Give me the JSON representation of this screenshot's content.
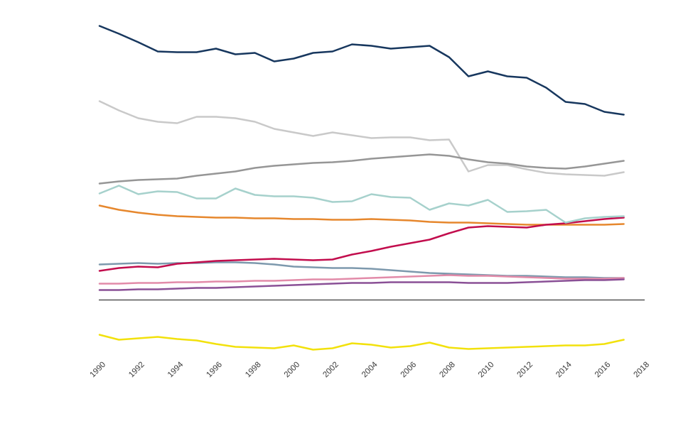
{
  "chart_data": {
    "type": "line",
    "title": "",
    "xlabel": "",
    "ylabel": "",
    "y_axis_labels_visible": false,
    "units": "arbitrary (no y-axis scale shown)",
    "grid": false,
    "legend": "none",
    "x": [
      1990,
      1991,
      1992,
      1993,
      1994,
      1995,
      1996,
      1997,
      1998,
      1999,
      2000,
      2001,
      2002,
      2003,
      2004,
      2005,
      2006,
      2007,
      2008,
      2009,
      2010,
      2011,
      2012,
      2013,
      2014,
      2015,
      2016,
      2017
    ],
    "x_tick_labels": [
      "1990",
      "1992",
      "1994",
      "1996",
      "1998",
      "2000",
      "2002",
      "2004",
      "2006",
      "2008",
      "2010",
      "2012",
      "2014",
      "2016",
      "2018"
    ],
    "x_tick_rotation_deg": 45,
    "x_range": [
      1990,
      2018
    ],
    "ylim": [
      -75,
      400
    ],
    "axis_color": "#3a3a3a",
    "tick_label_color": "#3a3a3a",
    "baseline_at_zero": true,
    "series": [
      {
        "name": "dark-navy",
        "color": "#17375e",
        "values": [
          386,
          375,
          363,
          350,
          349,
          349,
          354,
          346,
          348,
          336,
          340,
          348,
          350,
          360,
          358,
          354,
          356,
          358,
          342,
          315,
          322,
          315,
          313,
          299,
          279,
          276,
          265,
          261
        ]
      },
      {
        "name": "light-gray",
        "color": "#c9c9c9",
        "values": [
          280,
          267,
          256,
          251,
          249,
          258,
          258,
          256,
          251,
          241,
          236,
          231,
          236,
          232,
          228,
          229,
          229,
          225,
          226,
          181,
          190,
          190,
          184,
          179,
          177,
          176,
          175,
          180
        ]
      },
      {
        "name": "medium-gray",
        "color": "#969696",
        "values": [
          164,
          167,
          169,
          170,
          171,
          175,
          178,
          181,
          186,
          189,
          191,
          193,
          194,
          196,
          199,
          201,
          203,
          205,
          203,
          198,
          194,
          192,
          188,
          186,
          185,
          188,
          192,
          196
        ]
      },
      {
        "name": "orange",
        "color": "#e6872d",
        "values": [
          133,
          127,
          123,
          120,
          118,
          117,
          116,
          116,
          115,
          115,
          114,
          114,
          113,
          113,
          114,
          113,
          112,
          110,
          109,
          109,
          108,
          107,
          106,
          106,
          106,
          106,
          106,
          107
        ]
      },
      {
        "name": "steel-blue",
        "color": "#7d99ad",
        "values": [
          50,
          51,
          52,
          51,
          52,
          52,
          53,
          53,
          52,
          50,
          47,
          46,
          45,
          45,
          44,
          42,
          40,
          38,
          37,
          36,
          35,
          34,
          34,
          33,
          32,
          32,
          31,
          31
        ]
      },
      {
        "name": "pink",
        "color": "#e28ba9",
        "values": [
          23,
          23,
          24,
          24,
          25,
          25,
          26,
          26,
          27,
          27,
          28,
          29,
          29,
          30,
          31,
          32,
          33,
          34,
          35,
          34,
          34,
          33,
          32,
          31,
          30,
          30,
          30,
          31
        ]
      },
      {
        "name": "purple",
        "color": "#8a5096",
        "values": [
          14,
          14,
          15,
          15,
          16,
          17,
          17,
          18,
          19,
          20,
          21,
          22,
          23,
          24,
          24,
          25,
          25,
          25,
          25,
          24,
          24,
          24,
          25,
          26,
          27,
          28,
          28,
          29
        ]
      },
      {
        "name": "crimson",
        "color": "#c20d4d",
        "values": [
          41,
          45,
          47,
          46,
          51,
          53,
          55,
          56,
          57,
          58,
          57,
          56,
          57,
          64,
          69,
          75,
          80,
          85,
          94,
          102,
          104,
          103,
          102,
          106,
          108,
          111,
          114,
          116
        ]
      },
      {
        "name": "pale-teal",
        "color": "#a6d1cc",
        "values": [
          150,
          161,
          149,
          153,
          152,
          143,
          143,
          157,
          148,
          146,
          146,
          144,
          138,
          139,
          149,
          145,
          144,
          127,
          136,
          133,
          141,
          124,
          125,
          127,
          109,
          115,
          117,
          118
        ]
      },
      {
        "name": "yellow",
        "color": "#f2e10c",
        "values": [
          -49,
          -56,
          -54,
          -52,
          -55,
          -57,
          -62,
          -66,
          -67,
          -68,
          -64,
          -70,
          -68,
          -61,
          -63,
          -67,
          -65,
          -60,
          -67,
          -69,
          -68,
          -67,
          -66,
          -65,
          -64,
          -64,
          -62,
          -56
        ]
      }
    ]
  }
}
